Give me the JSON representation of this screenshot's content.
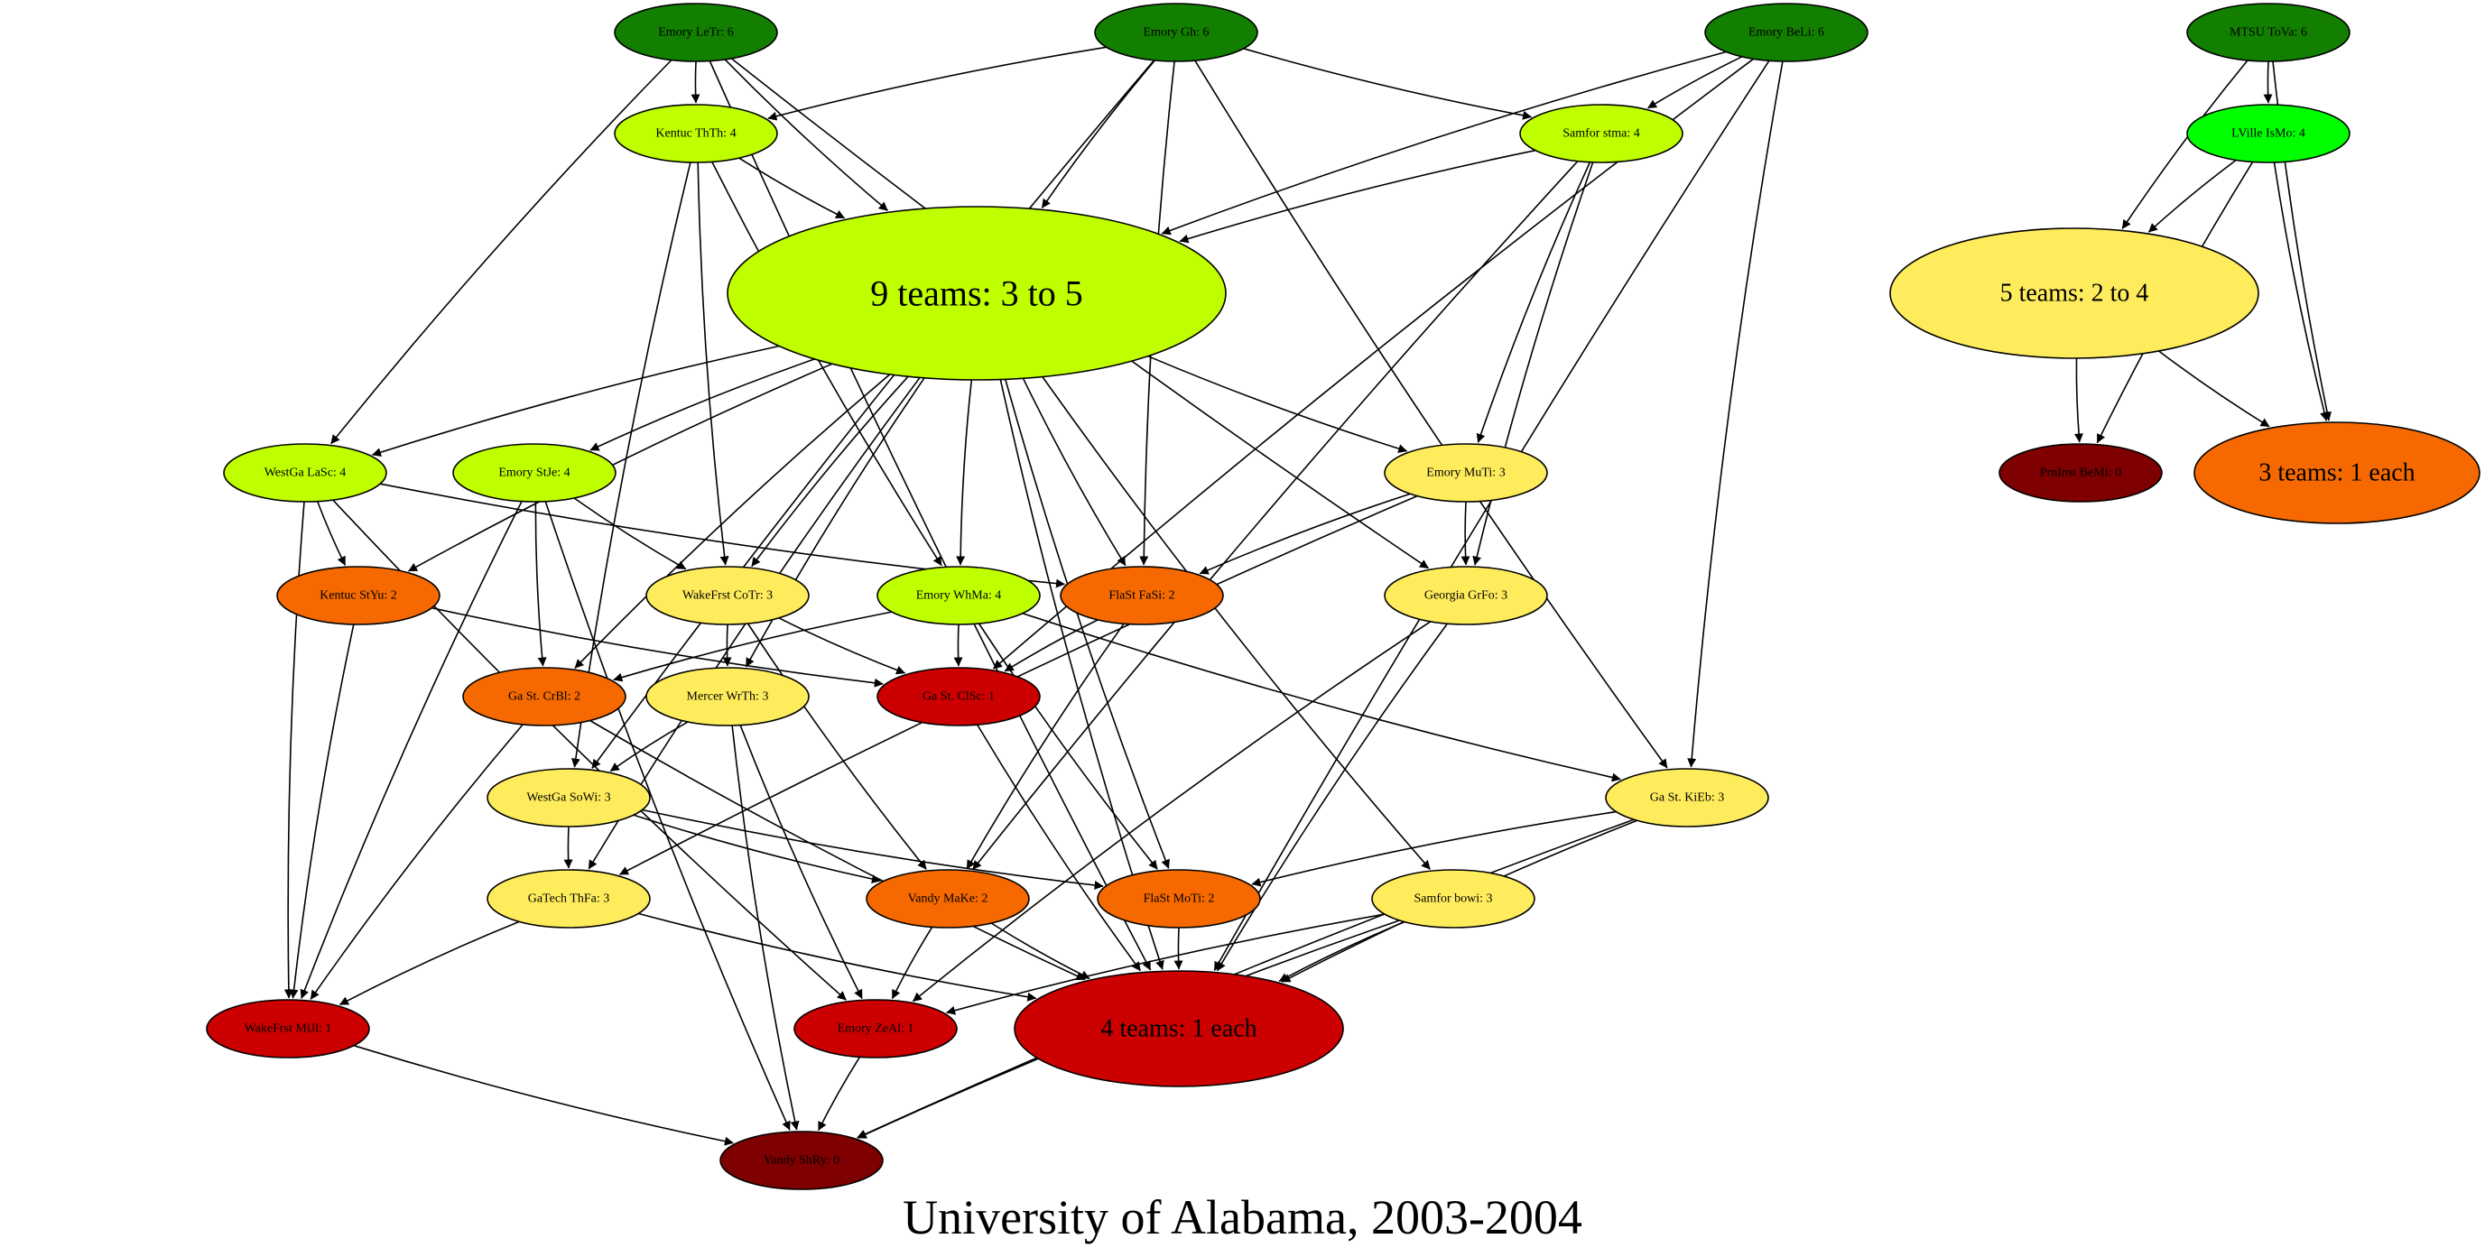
{
  "caption": "University of Alabama, 2003-2004",
  "colors": {
    "dark_green": "#127f00",
    "lime": "#bfff00",
    "bright_green": "#00ff00",
    "yellow": "#ffec5c",
    "orange": "#f56900",
    "red": "#cc0000",
    "dark_red": "#7f0000"
  },
  "nodes": [
    {
      "id": "letr",
      "label": "Emory LeTr: 6",
      "color": "dark_green"
    },
    {
      "id": "gh",
      "label": "Emory Gh: 6",
      "color": "dark_green"
    },
    {
      "id": "beli",
      "label": "Emory BeLi: 6",
      "color": "dark_green"
    },
    {
      "id": "tova",
      "label": "MTSU ToVa: 6",
      "color": "dark_green"
    },
    {
      "id": "thth",
      "label": "Kentuc ThTh: 4",
      "color": "lime"
    },
    {
      "id": "stma",
      "label": "Samfor stma: 4",
      "color": "lime"
    },
    {
      "id": "isMo",
      "label": "LVille IsMo: 4",
      "color": "bright_green"
    },
    {
      "id": "big9",
      "label": "9 teams: 3 to 5",
      "color": "lime"
    },
    {
      "id": "big5",
      "label": "5 teams: 2 to 4",
      "color": "yellow"
    },
    {
      "id": "lasc",
      "label": "WestGa LaSc: 4",
      "color": "lime"
    },
    {
      "id": "stje",
      "label": "Emory StJe: 4",
      "color": "lime"
    },
    {
      "id": "muti",
      "label": "Emory MuTi: 3",
      "color": "yellow"
    },
    {
      "id": "bemi",
      "label": "PrnInst BeMi: 0",
      "color": "dark_red"
    },
    {
      "id": "big3",
      "label": "3 teams: 1 each",
      "color": "orange"
    },
    {
      "id": "styu",
      "label": "Kentuc StYu: 2",
      "color": "orange"
    },
    {
      "id": "cotr",
      "label": "WakeFrst CoTr: 3",
      "color": "yellow"
    },
    {
      "id": "whma",
      "label": "Emory WhMa: 4",
      "color": "lime"
    },
    {
      "id": "fasi",
      "label": "FlaSt FaSi: 2",
      "color": "orange"
    },
    {
      "id": "grfo",
      "label": "Georgia GrFo: 3",
      "color": "yellow"
    },
    {
      "id": "crbl",
      "label": "Ga St. CrBl: 2",
      "color": "orange"
    },
    {
      "id": "wrth",
      "label": "Mercer WrTh: 3",
      "color": "yellow"
    },
    {
      "id": "clsc",
      "label": "Ga St. ClSc: 1",
      "color": "red"
    },
    {
      "id": "sowi",
      "label": "WestGa SoWi: 3",
      "color": "yellow"
    },
    {
      "id": "kieb",
      "label": "Ga St. KiEb: 3",
      "color": "yellow"
    },
    {
      "id": "thfa",
      "label": "GaTech ThFa: 3",
      "color": "yellow"
    },
    {
      "id": "make",
      "label": "Vandy MaKe: 2",
      "color": "orange"
    },
    {
      "id": "moti",
      "label": "FlaSt MoTi: 2",
      "color": "orange"
    },
    {
      "id": "bowi",
      "label": "Samfor bowi: 3",
      "color": "yellow"
    },
    {
      "id": "mijl",
      "label": "WakeFrst MiJl: 1",
      "color": "red"
    },
    {
      "id": "zeal",
      "label": "Emory ZeAl: 1",
      "color": "red"
    },
    {
      "id": "big4",
      "label": "4 teams: 1 each",
      "color": "red"
    },
    {
      "id": "shry",
      "label": "Vandy ShRy: 0",
      "color": "dark_red"
    }
  ],
  "edges": [
    [
      "letr",
      "thth"
    ],
    [
      "letr",
      "big9"
    ],
    [
      "letr",
      "lasc"
    ],
    [
      "letr",
      "grfo"
    ],
    [
      "letr",
      "big4"
    ],
    [
      "gh",
      "thth"
    ],
    [
      "gh",
      "big9"
    ],
    [
      "gh",
      "stma"
    ],
    [
      "gh",
      "fasi"
    ],
    [
      "gh",
      "kieb"
    ],
    [
      "gh",
      "sowi"
    ],
    [
      "beli",
      "stma"
    ],
    [
      "beli",
      "big9"
    ],
    [
      "beli",
      "clsc"
    ],
    [
      "beli",
      "kieb"
    ],
    [
      "beli",
      "big4"
    ],
    [
      "tova",
      "isMo"
    ],
    [
      "tova",
      "big5"
    ],
    [
      "tova",
      "big3"
    ],
    [
      "thth",
      "big9"
    ],
    [
      "thth",
      "cotr"
    ],
    [
      "thth",
      "whma"
    ],
    [
      "thth",
      "sowi"
    ],
    [
      "stma",
      "big9"
    ],
    [
      "stma",
      "muti"
    ],
    [
      "stma",
      "grfo"
    ],
    [
      "stma",
      "make"
    ],
    [
      "isMo",
      "big5"
    ],
    [
      "isMo",
      "bemi"
    ],
    [
      "isMo",
      "big3"
    ],
    [
      "big5",
      "bemi"
    ],
    [
      "big5",
      "big3"
    ],
    [
      "big9",
      "lasc"
    ],
    [
      "big9",
      "stje"
    ],
    [
      "big9",
      "muti"
    ],
    [
      "big9",
      "styu"
    ],
    [
      "big9",
      "cotr"
    ],
    [
      "big9",
      "whma"
    ],
    [
      "big9",
      "fasi"
    ],
    [
      "big9",
      "crbl"
    ],
    [
      "big9",
      "wrth"
    ],
    [
      "big9",
      "thfa"
    ],
    [
      "big9",
      "moti"
    ],
    [
      "big9",
      "bowi"
    ],
    [
      "big9",
      "big4"
    ],
    [
      "lasc",
      "styu"
    ],
    [
      "lasc",
      "fasi"
    ],
    [
      "lasc",
      "mijl"
    ],
    [
      "lasc",
      "zeal"
    ],
    [
      "stje",
      "crbl"
    ],
    [
      "stje",
      "cotr"
    ],
    [
      "stje",
      "mijl"
    ],
    [
      "stje",
      "shry"
    ],
    [
      "muti",
      "fasi"
    ],
    [
      "muti",
      "grfo"
    ],
    [
      "muti",
      "thfa"
    ],
    [
      "styu",
      "clsc"
    ],
    [
      "styu",
      "mijl"
    ],
    [
      "cotr",
      "wrth"
    ],
    [
      "cotr",
      "clsc"
    ],
    [
      "cotr",
      "make"
    ],
    [
      "whma",
      "crbl"
    ],
    [
      "whma",
      "clsc"
    ],
    [
      "whma",
      "kieb"
    ],
    [
      "whma",
      "moti"
    ],
    [
      "fasi",
      "clsc"
    ],
    [
      "fasi",
      "make"
    ],
    [
      "grfo",
      "zeal"
    ],
    [
      "grfo",
      "big4"
    ],
    [
      "crbl",
      "mijl"
    ],
    [
      "crbl",
      "big4"
    ],
    [
      "wrth",
      "sowi"
    ],
    [
      "wrth",
      "zeal"
    ],
    [
      "wrth",
      "shry"
    ],
    [
      "clsc",
      "big4"
    ],
    [
      "sowi",
      "thfa"
    ],
    [
      "sowi",
      "make"
    ],
    [
      "sowi",
      "moti"
    ],
    [
      "kieb",
      "moti"
    ],
    [
      "kieb",
      "big4"
    ],
    [
      "kieb",
      "shry"
    ],
    [
      "thfa",
      "mijl"
    ],
    [
      "thfa",
      "big4"
    ],
    [
      "make",
      "zeal"
    ],
    [
      "make",
      "big4"
    ],
    [
      "moti",
      "big4"
    ],
    [
      "bowi",
      "big4"
    ],
    [
      "bowi",
      "zeal"
    ],
    [
      "bowi",
      "shry"
    ],
    [
      "mijl",
      "shry"
    ],
    [
      "zeal",
      "shry"
    ]
  ]
}
